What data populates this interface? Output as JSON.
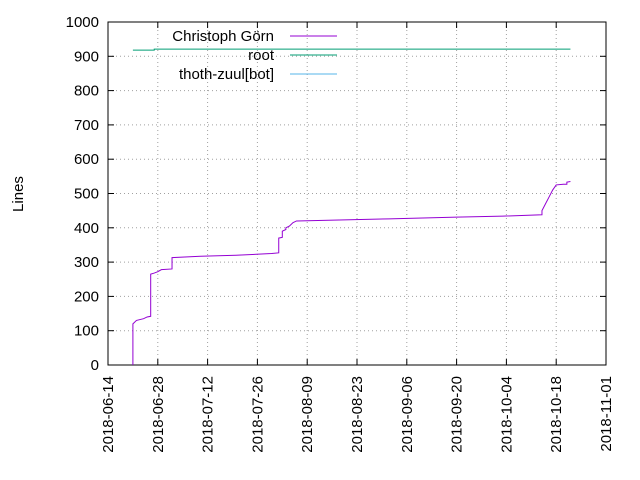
{
  "chart_data": {
    "type": "line",
    "title": "",
    "xlabel": "",
    "ylabel": "Lines",
    "ylim": [
      0,
      1000
    ],
    "xlim": [
      "2018-06-14",
      "2018-11-01"
    ],
    "grid": true,
    "legend_position": "top-left",
    "y_ticks": [
      "0",
      "100",
      "200",
      "300",
      "400",
      "500",
      "600",
      "700",
      "800",
      "900",
      "1000"
    ],
    "x_ticks": [
      "2018-06-14",
      "2018-06-28",
      "2018-07-12",
      "2018-07-26",
      "2018-08-09",
      "2018-08-23",
      "2018-09-06",
      "2018-09-20",
      "2018-10-04",
      "2018-10-18",
      "2018-11-01"
    ],
    "series": [
      {
        "name": "Christoph Görn",
        "color": "#9400d3",
        "points": [
          [
            "2018-06-21",
            0
          ],
          [
            "2018-06-21",
            110
          ],
          [
            "2018-06-21",
            120
          ],
          [
            "2018-06-22",
            130
          ],
          [
            "2018-06-24",
            135
          ],
          [
            "2018-06-25",
            140
          ],
          [
            "2018-06-26",
            142
          ],
          [
            "2018-06-26",
            250
          ],
          [
            "2018-06-26",
            265
          ],
          [
            "2018-06-27",
            268
          ],
          [
            "2018-06-28",
            272
          ],
          [
            "2018-06-29",
            278
          ],
          [
            "2018-07-02",
            280
          ],
          [
            "2018-07-02",
            313
          ],
          [
            "2018-07-10",
            317
          ],
          [
            "2018-07-20",
            320
          ],
          [
            "2018-07-30",
            325
          ],
          [
            "2018-08-01",
            327
          ],
          [
            "2018-08-01",
            345
          ],
          [
            "2018-08-01",
            370
          ],
          [
            "2018-08-02",
            372
          ],
          [
            "2018-08-02",
            390
          ],
          [
            "2018-08-03",
            395
          ],
          [
            "2018-08-03",
            400
          ],
          [
            "2018-08-04",
            405
          ],
          [
            "2018-08-05",
            415
          ],
          [
            "2018-08-06",
            420
          ],
          [
            "2018-08-15",
            422
          ],
          [
            "2018-09-01",
            426
          ],
          [
            "2018-09-20",
            431
          ],
          [
            "2018-10-03",
            434
          ],
          [
            "2018-10-14",
            438
          ],
          [
            "2018-10-14",
            450
          ],
          [
            "2018-10-15",
            470
          ],
          [
            "2018-10-16",
            490
          ],
          [
            "2018-10-17",
            510
          ],
          [
            "2018-10-18",
            525
          ],
          [
            "2018-10-20",
            527
          ],
          [
            "2018-10-21",
            527
          ],
          [
            "2018-10-21",
            533
          ],
          [
            "2018-10-22",
            535
          ]
        ]
      },
      {
        "name": "root",
        "color": "#009e73",
        "points": [
          [
            "2018-06-21",
            918
          ],
          [
            "2018-06-27",
            918
          ],
          [
            "2018-06-27",
            921
          ],
          [
            "2018-10-22",
            921
          ]
        ]
      },
      {
        "name": "thoth-zuul[bot]",
        "color": "#56b4e9",
        "points": []
      }
    ]
  }
}
